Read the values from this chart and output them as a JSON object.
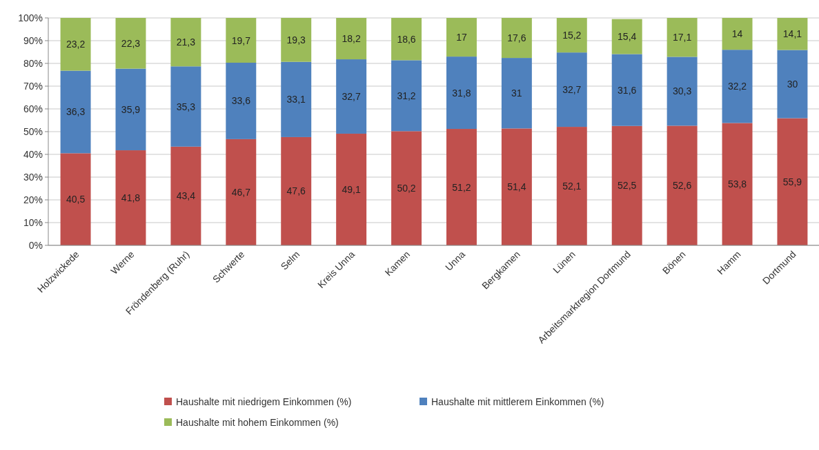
{
  "chart_data": {
    "type": "bar",
    "stacked": true,
    "categories": [
      "Holzwickede",
      "Werne",
      "Fröndenberg (Ruhr)",
      "Schwerte",
      "Selm",
      "Kreis Unna",
      "Kamen",
      "Unna",
      "Bergkamen",
      "Lünen",
      "Arbeitsmarktregion Dortmund",
      "Bönen",
      "Hamm",
      "Dortmund"
    ],
    "series": [
      {
        "name": "Haushalte mit niedrigem Einkommen (%)",
        "color": "#c0504d",
        "values": [
          40.5,
          41.8,
          43.4,
          46.7,
          47.6,
          49.1,
          50.2,
          51.2,
          51.4,
          52.1,
          52.5,
          52.6,
          53.8,
          55.9
        ],
        "value_labels": [
          "40,5",
          "41,8",
          "43,4",
          "46,7",
          "47,6",
          "49,1",
          "50,2",
          "51,2",
          "51,4",
          "52,1",
          "52,5",
          "52,6",
          "53,8",
          "55,9"
        ]
      },
      {
        "name": "Haushalte mit mittlerem Einkommen (%)",
        "color": "#4f81bd",
        "values": [
          36.3,
          35.9,
          35.3,
          33.6,
          33.1,
          32.7,
          31.2,
          31.8,
          31,
          32.7,
          31.6,
          30.3,
          32.2,
          30
        ],
        "value_labels": [
          "36,3",
          "35,9",
          "35,3",
          "33,6",
          "33,1",
          "32,7",
          "31,2",
          "31,8",
          "31",
          "32,7",
          "31,6",
          "30,3",
          "32,2",
          "30"
        ]
      },
      {
        "name": "Haushalte mit hohem Einkommen (%)",
        "color": "#9bbb59",
        "values": [
          23.2,
          22.3,
          21.3,
          19.7,
          19.3,
          18.2,
          18.6,
          17,
          17.6,
          15.2,
          15.4,
          17.1,
          14,
          14.1
        ],
        "value_labels": [
          "23,2",
          "22,3",
          "21,3",
          "19,7",
          "19,3",
          "18,2",
          "18,6",
          "17",
          "17,6",
          "15,2",
          "15,4",
          "17,1",
          "14",
          "14,1"
        ]
      }
    ],
    "ylim": [
      0,
      100
    ],
    "yticks": [
      {
        "value": 0,
        "label": "0%"
      },
      {
        "value": 10,
        "label": "10%"
      },
      {
        "value": 20,
        "label": "20%"
      },
      {
        "value": 30,
        "label": "30%"
      },
      {
        "value": 40,
        "label": "40%"
      },
      {
        "value": 50,
        "label": "50%"
      },
      {
        "value": 60,
        "label": "60%"
      },
      {
        "value": 70,
        "label": "70%"
      },
      {
        "value": 80,
        "label": "80%"
      },
      {
        "value": 90,
        "label": "90%"
      },
      {
        "value": 100,
        "label": "100%"
      }
    ],
    "grid": "y",
    "legend": "bottom"
  }
}
